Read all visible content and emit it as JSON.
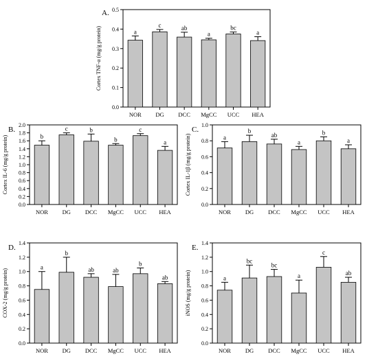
{
  "chart_data": [
    {
      "type": "bar",
      "panel_label": "A.",
      "ylabel": "Cortex TNF-α (mg/g protein)",
      "categories": [
        "NOR",
        "DG",
        "DCC",
        "MgCC",
        "UCC",
        "HEA"
      ],
      "values": [
        0.343,
        0.386,
        0.359,
        0.345,
        0.375,
        0.341
      ],
      "errors": [
        0.022,
        0.012,
        0.025,
        0.008,
        0.01,
        0.02
      ],
      "letters": [
        "a",
        "c",
        "ab",
        "a",
        "bc",
        "a"
      ],
      "ylim": [
        0,
        0.5
      ],
      "yticks": [
        "0.0",
        "0.1",
        "0.2",
        "0.3",
        "0.4",
        "0.5"
      ]
    },
    {
      "type": "bar",
      "panel_label": "B.",
      "ylabel": "Cortex IL-6 (mg/g protein)",
      "categories": [
        "NOR",
        "DG",
        "DCC",
        "MgCC",
        "UCC",
        "HEA"
      ],
      "values": [
        1.49,
        1.75,
        1.59,
        1.49,
        1.73,
        1.36
      ],
      "errors": [
        0.11,
        0.05,
        0.18,
        0.04,
        0.05,
        0.1
      ],
      "letters": [
        "b",
        "c",
        "b",
        "b",
        "c",
        "a"
      ],
      "ylim": [
        0,
        2.0
      ],
      "yticks": [
        "0.0",
        "0.2",
        "0.4",
        "0.6",
        "0.8",
        "1.0",
        "1.2",
        "1.4",
        "1.6",
        "1.8",
        "2.0"
      ]
    },
    {
      "type": "bar",
      "panel_label": "C.",
      "ylabel": "Cortex IL-1β (mg/g protein)",
      "categories": [
        "NOR",
        "DG",
        "DCC",
        "MgCC",
        "UCC",
        "HEA"
      ],
      "values": [
        0.71,
        0.79,
        0.76,
        0.69,
        0.8,
        0.7
      ],
      "errors": [
        0.08,
        0.08,
        0.06,
        0.04,
        0.05,
        0.05
      ],
      "letters": [
        "a",
        "b",
        "ab",
        "a",
        "b",
        "a"
      ],
      "ylim": [
        0,
        1.0
      ],
      "yticks": [
        "0.0",
        "0.2",
        "0.4",
        "0.6",
        "0.8",
        "1.0"
      ]
    },
    {
      "type": "bar",
      "panel_label": "D.",
      "ylabel": "COX-2 (mg/g protein)",
      "categories": [
        "NOR",
        "DG",
        "DCC",
        "MgCC",
        "UCC",
        "HEA"
      ],
      "values": [
        0.75,
        0.99,
        0.92,
        0.79,
        0.97,
        0.83
      ],
      "errors": [
        0.25,
        0.21,
        0.05,
        0.17,
        0.08,
        0.03
      ],
      "letters": [
        "a",
        "b",
        "ab",
        "ab",
        "b",
        "ab"
      ],
      "ylim": [
        0,
        1.4
      ],
      "yticks": [
        "0.0",
        "0.2",
        "0.4",
        "0.6",
        "0.8",
        "1.0",
        "1.2",
        "1.4"
      ]
    },
    {
      "type": "bar",
      "panel_label": "E.",
      "ylabel": "iNOS (mg/g protein)",
      "categories": [
        "NOR",
        "DG",
        "DCC",
        "MgCC",
        "UCC",
        "HEA"
      ],
      "values": [
        0.74,
        0.91,
        0.93,
        0.7,
        1.06,
        0.85
      ],
      "errors": [
        0.11,
        0.18,
        0.1,
        0.18,
        0.15,
        0.07
      ],
      "letters": [
        "a",
        "bc",
        "bc",
        "a",
        "c",
        "ab"
      ],
      "ylim": [
        0,
        1.4
      ],
      "yticks": [
        "0.0",
        "0.2",
        "0.4",
        "0.6",
        "0.8",
        "1.0",
        "1.2",
        "1.4"
      ]
    }
  ]
}
